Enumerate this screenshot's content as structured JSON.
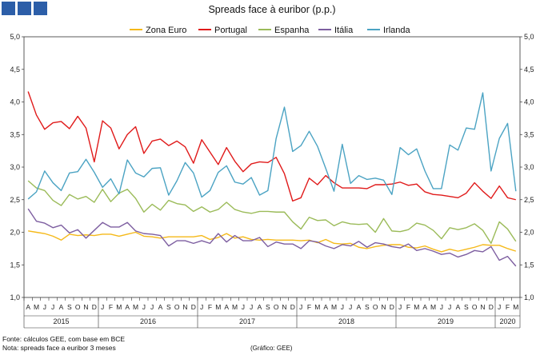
{
  "chart_data": {
    "type": "line",
    "title": "Spreads face à euribor (p.p.)",
    "ylim": [
      1.0,
      5.0
    ],
    "yticks": [
      "1,0",
      "1,5",
      "2,0",
      "2,5",
      "3,0",
      "3,5",
      "4,0",
      "4,5",
      "5,0"
    ],
    "ytick_values": [
      1.0,
      1.5,
      2.0,
      2.5,
      3.0,
      3.5,
      4.0,
      4.5,
      5.0
    ],
    "months": [
      "A",
      "M",
      "J",
      "J",
      "A",
      "S",
      "O",
      "N",
      "D",
      "J",
      "F",
      "M",
      "A",
      "M",
      "J",
      "J",
      "A",
      "S",
      "O",
      "N",
      "D",
      "J",
      "F",
      "M",
      "A",
      "M",
      "J",
      "J",
      "A",
      "S",
      "O",
      "N",
      "D",
      "J",
      "F",
      "M",
      "A",
      "M",
      "J",
      "J",
      "A",
      "S",
      "O",
      "N",
      "D",
      "J",
      "F",
      "M",
      "A",
      "M",
      "J",
      "J",
      "A",
      "S",
      "O",
      "N",
      "D",
      "J",
      "F",
      "M"
    ],
    "years": [
      {
        "label": "2015",
        "start": 0,
        "end": 8
      },
      {
        "label": "2016",
        "start": 9,
        "end": 20
      },
      {
        "label": "2017",
        "start": 21,
        "end": 32
      },
      {
        "label": "2018",
        "start": 33,
        "end": 44
      },
      {
        "label": "2019",
        "start": 45,
        "end": 56
      },
      {
        "label": "2020",
        "start": 57,
        "end": 59
      }
    ],
    "legend_position": "top",
    "series": [
      {
        "name": "Zona Euro",
        "color": "#f5b919",
        "values": [
          2.02,
          2.0,
          1.98,
          1.94,
          1.88,
          1.97,
          1.95,
          1.96,
          1.95,
          1.97,
          1.97,
          1.94,
          1.97,
          2.0,
          1.94,
          1.93,
          1.91,
          1.93,
          1.93,
          1.93,
          1.93,
          1.95,
          1.89,
          1.92,
          1.98,
          1.91,
          1.93,
          1.89,
          1.88,
          1.89,
          1.88,
          1.88,
          1.88,
          1.87,
          1.88,
          1.84,
          1.89,
          1.83,
          1.82,
          1.83,
          1.77,
          1.75,
          1.78,
          1.8,
          1.81,
          1.81,
          1.77,
          1.76,
          1.79,
          1.74,
          1.7,
          1.74,
          1.71,
          1.74,
          1.77,
          1.81,
          1.8,
          1.8,
          1.75,
          1.71
        ]
      },
      {
        "name": "Portugal",
        "color": "#e01a1a",
        "values": [
          4.16,
          3.8,
          3.58,
          3.68,
          3.7,
          3.59,
          3.78,
          3.6,
          3.08,
          3.71,
          3.6,
          3.28,
          3.5,
          3.62,
          3.21,
          3.4,
          3.43,
          3.33,
          3.4,
          3.31,
          3.06,
          3.42,
          3.23,
          3.04,
          3.3,
          3.09,
          2.93,
          3.05,
          3.08,
          3.07,
          3.15,
          2.9,
          2.48,
          2.53,
          2.83,
          2.73,
          2.87,
          2.76,
          2.68,
          2.68,
          2.68,
          2.67,
          2.73,
          2.73,
          2.74,
          2.77,
          2.72,
          2.74,
          2.62,
          2.58,
          2.57,
          2.55,
          2.53,
          2.6,
          2.76,
          2.63,
          2.52,
          2.71,
          2.53,
          2.5
        ]
      },
      {
        "name": "Espanha",
        "color": "#9bbb59",
        "values": [
          2.79,
          2.68,
          2.64,
          2.49,
          2.41,
          2.58,
          2.51,
          2.55,
          2.46,
          2.66,
          2.47,
          2.6,
          2.66,
          2.52,
          2.31,
          2.43,
          2.34,
          2.49,
          2.44,
          2.42,
          2.32,
          2.39,
          2.31,
          2.35,
          2.46,
          2.35,
          2.31,
          2.29,
          2.32,
          2.32,
          2.31,
          2.31,
          2.16,
          2.05,
          2.23,
          2.18,
          2.19,
          2.1,
          2.16,
          2.13,
          2.12,
          2.13,
          2.0,
          2.21,
          2.02,
          2.01,
          2.04,
          2.14,
          2.11,
          2.03,
          1.9,
          2.07,
          2.04,
          2.07,
          2.13,
          2.03,
          1.83,
          2.16,
          2.05,
          1.86
        ]
      },
      {
        "name": "Itália",
        "color": "#7d5ea0",
        "values": [
          2.36,
          2.17,
          2.14,
          2.07,
          2.11,
          1.99,
          2.04,
          1.91,
          2.03,
          2.15,
          2.08,
          2.08,
          2.15,
          2.02,
          1.98,
          1.97,
          1.95,
          1.79,
          1.87,
          1.87,
          1.83,
          1.87,
          1.83,
          1.98,
          1.85,
          1.95,
          1.87,
          1.87,
          1.92,
          1.78,
          1.85,
          1.82,
          1.82,
          1.75,
          1.87,
          1.85,
          1.79,
          1.75,
          1.81,
          1.79,
          1.86,
          1.77,
          1.84,
          1.82,
          1.78,
          1.76,
          1.82,
          1.72,
          1.75,
          1.71,
          1.66,
          1.68,
          1.62,
          1.66,
          1.72,
          1.7,
          1.78,
          1.57,
          1.63,
          1.48
        ]
      },
      {
        "name": "Irlanda",
        "color": "#4ba3c3",
        "values": [
          2.51,
          2.62,
          2.94,
          2.76,
          2.64,
          2.91,
          2.93,
          3.12,
          2.92,
          2.69,
          2.82,
          2.59,
          3.11,
          2.91,
          2.85,
          2.98,
          2.99,
          2.57,
          2.79,
          3.07,
          2.91,
          2.54,
          2.64,
          2.92,
          3.02,
          2.77,
          2.74,
          2.84,
          2.57,
          2.64,
          3.44,
          3.92,
          3.24,
          3.33,
          3.55,
          3.32,
          2.98,
          2.63,
          3.35,
          2.75,
          2.87,
          2.81,
          2.83,
          2.8,
          2.58,
          3.3,
          3.19,
          3.28,
          2.94,
          2.67,
          2.67,
          3.34,
          3.26,
          3.6,
          3.58,
          4.14,
          2.94,
          3.44,
          3.67,
          2.63
        ]
      }
    ]
  },
  "notes": {
    "source": "Fonte: cálculos GEE, com base em BCE",
    "note": "Nota: spreads face a euribor 3 meses",
    "credit": "(Gráfico: GEE)"
  },
  "header": {
    "logo_squares": 3,
    "logo_color": "#2c5ea8"
  }
}
